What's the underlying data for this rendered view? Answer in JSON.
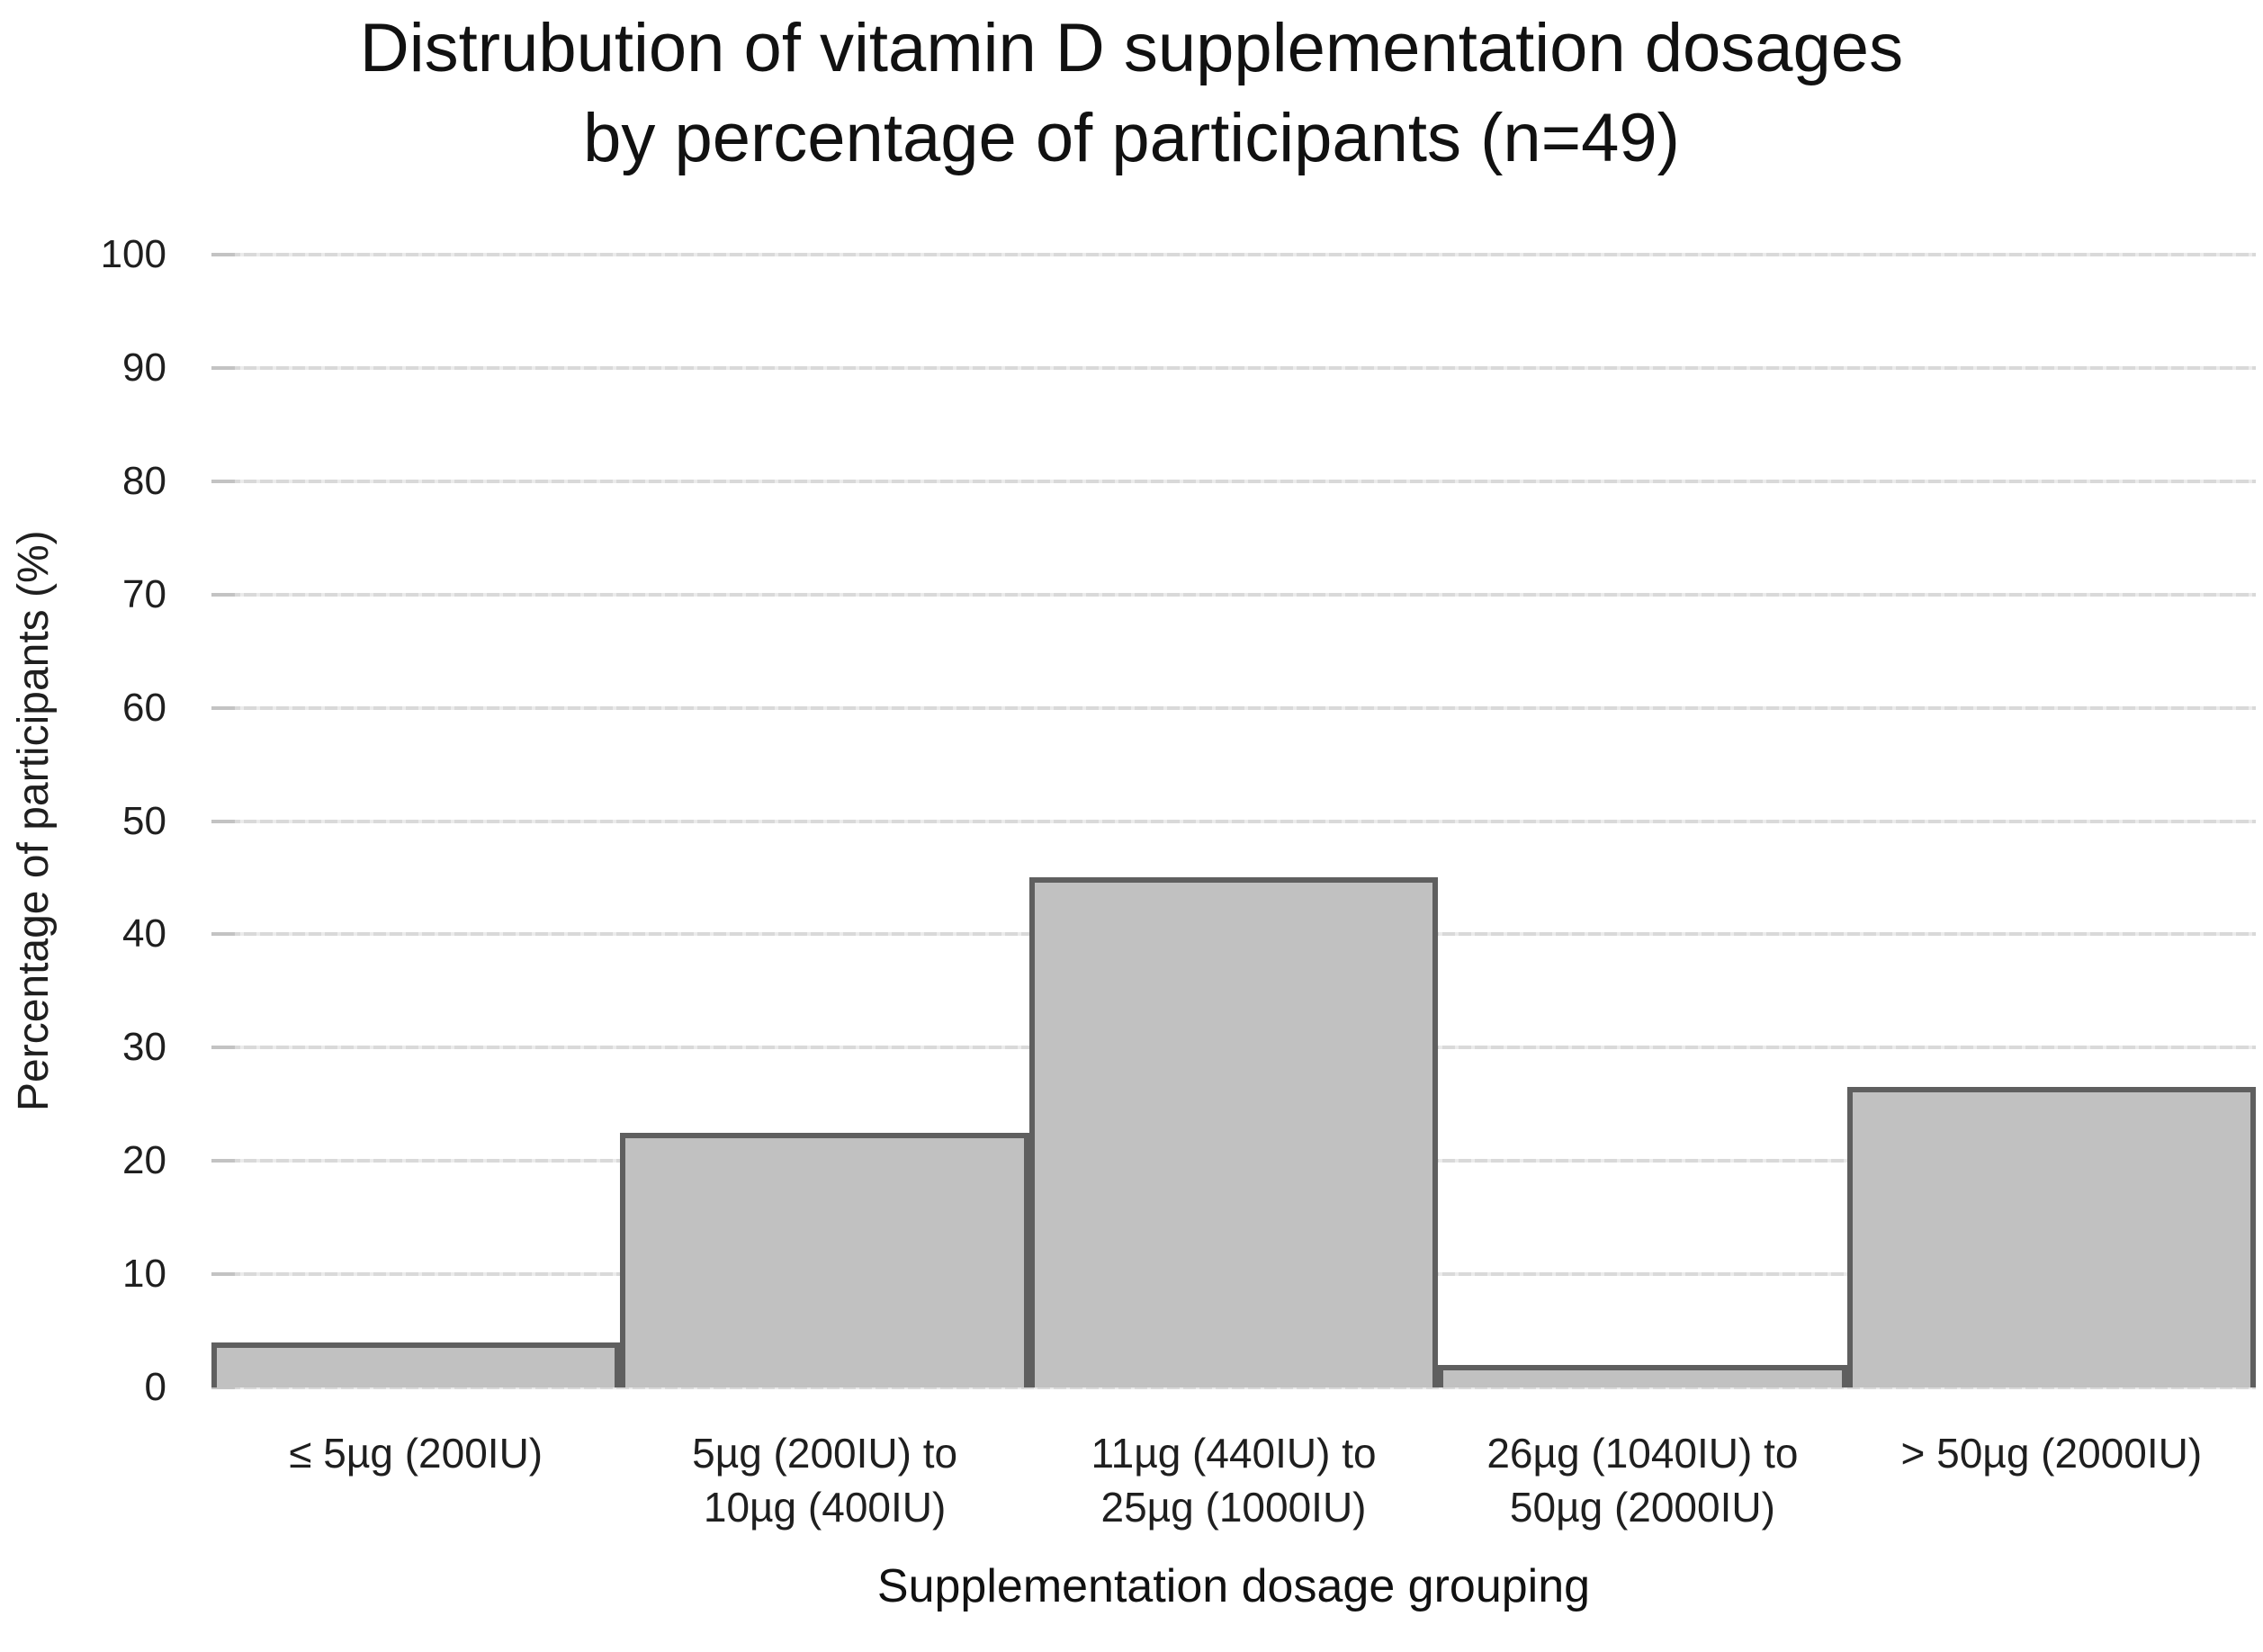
{
  "chart_data": {
    "type": "bar",
    "title_lines": [
      "Distrubution of vitamin D supplementation dosages",
      "by percentage of participants (n=49)"
    ],
    "categories": [
      "≤ 5µg (200IU)",
      "5µg (200IU) to\n10µg (400IU)",
      "11µg (440IU) to\n25µg (1000IU)",
      "26µg (1040IU) to\n50µg (2000IU)",
      "> 50µg (2000IU)"
    ],
    "values": [
      4,
      22.5,
      45,
      2,
      26.5
    ],
    "xlabel": "Supplementation dosage grouping",
    "ylabel": "Percentage of participants (%)",
    "ylim": [
      0,
      100
    ],
    "yticks": [
      0,
      10,
      20,
      30,
      40,
      50,
      60,
      70,
      80,
      90,
      100
    ],
    "grid": "horizontal",
    "legend": "none",
    "colors": {
      "bar_fill": "#c1c1c1",
      "bar_border": "#5f5f5f",
      "gridline": "#d9d9d9",
      "text": "#1f1f1f"
    }
  }
}
